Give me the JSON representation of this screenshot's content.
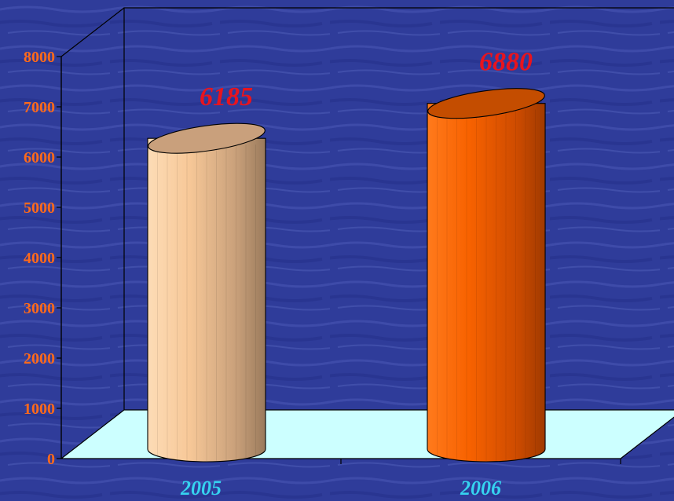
{
  "chart_data": {
    "type": "bar",
    "style": "3d-cylinder",
    "categories": [
      "2005",
      "2006"
    ],
    "values": [
      6185,
      6880
    ],
    "data_labels": [
      "6185",
      "6880"
    ],
    "yticks": [
      "0",
      "1000",
      "2000",
      "3000",
      "4000",
      "5000",
      "6000",
      "7000",
      "8000"
    ],
    "ylim": [
      0,
      8000
    ],
    "title": "",
    "xlabel": "",
    "ylabel": "",
    "grid": false,
    "legend": "none",
    "colors": {
      "background": "#2f3c9a",
      "floor": "#ccffff",
      "axis": "#000000",
      "ytick_text": "#ff6a1a",
      "xtick_text": "#35d3f0",
      "data_label_text": "#e8141e",
      "bars": [
        "#f8c99a",
        "#ff6600"
      ]
    }
  }
}
